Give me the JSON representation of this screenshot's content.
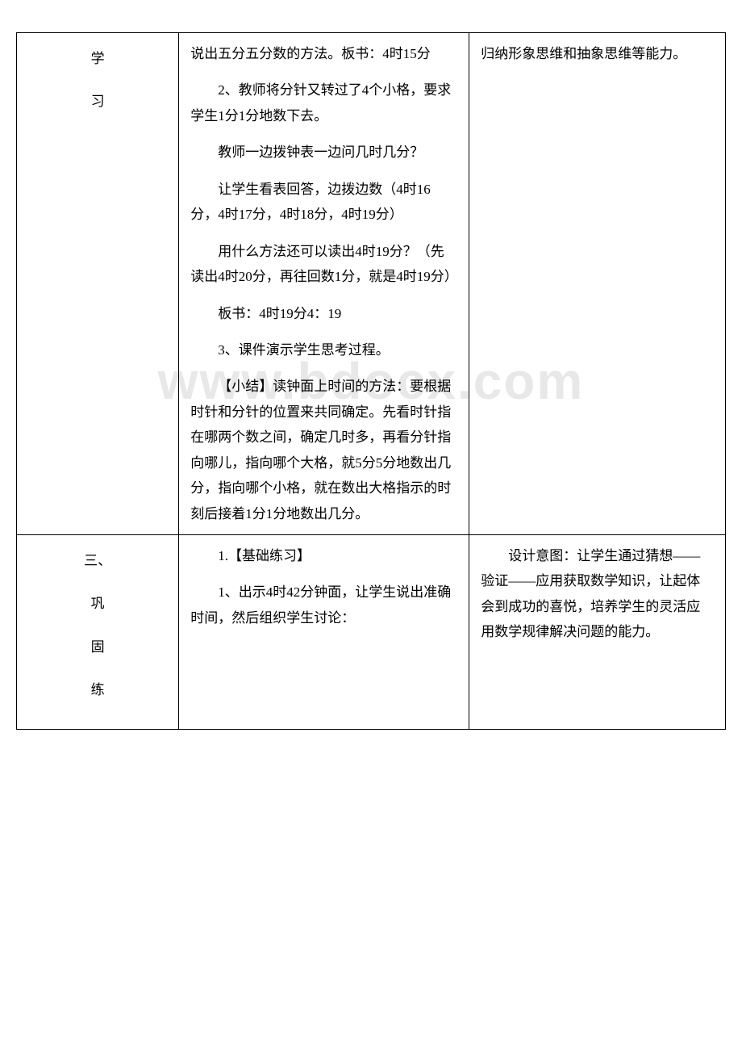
{
  "watermark": "www.bdocx.com",
  "table": {
    "rows": [
      {
        "left": [
          "学",
          "习"
        ],
        "mid": [
          "说出五分五分数的方法。板书：4时15分",
          "2、教师将分针又转过了4个小格，要求学生1分1分地数下去。",
          "教师一边拨钟表一边问几时几分？",
          "让学生看表回答，边拨边数（4时16分，4时17分，4时18分，4时19分）",
          "用什么方法还可以读出4时19分？（先读出4时20分，再往回数1分，就是4时19分）",
          "板书：4时19分4：19",
          "3、课件演示学生思考过程。",
          "【小结】读钟面上时间的方法：要根据时针和分针的位置来共同确定。先看时针指在哪两个数之间，确定几时多，再看分针指向哪儿，指向哪个大格，就5分5分地数出几分，指向哪个小格，就在数出大格指示的时刻后接着1分1分地数出几分。"
        ],
        "right": [
          "归纳形象思维和抽象思维等能力。"
        ]
      },
      {
        "left": [
          "三、",
          "巩",
          "固",
          "练"
        ],
        "mid": [
          "1.【基础练习】",
          "1、出示4时42分钟面，让学生说出准确时间，然后组织学生讨论："
        ],
        "right": [
          "设计意图：让学生通过猜想——验证——应用获取数学知识，让起体会到成功的喜悦，培养学生的灵活应用数学规律解决问题的能力。"
        ]
      }
    ]
  }
}
